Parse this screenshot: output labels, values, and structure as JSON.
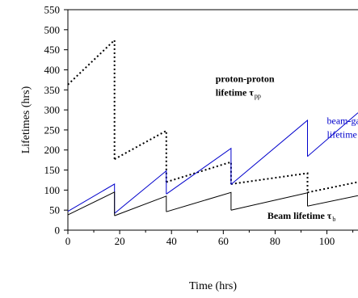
{
  "chart_data": {
    "type": "line",
    "xlabel": "Time (hrs)",
    "ylabel": "Lifetimes (hrs)",
    "xlim": [
      0,
      112
    ],
    "ylim": [
      0,
      550
    ],
    "xticks": [
      0,
      20,
      40,
      60,
      80,
      100
    ],
    "yticks": [
      0,
      50,
      100,
      150,
      200,
      250,
      300,
      350,
      400,
      450,
      500,
      550
    ],
    "grid": false,
    "legend": "none",
    "series": [
      {
        "style": "dotted",
        "color": "#000000",
        "segments": [
          [
            [
              0,
              363
            ],
            [
              18,
              474
            ],
            [
              18,
              177
            ]
          ],
          [
            [
              18,
              177
            ],
            [
              38,
              248
            ],
            [
              38,
              120
            ]
          ],
          [
            [
              38,
              120
            ],
            [
              63,
              170
            ],
            [
              63,
              115
            ]
          ],
          [
            [
              63,
              115
            ],
            [
              92.5,
              142
            ],
            [
              92.5,
              94
            ]
          ],
          [
            [
              92.5,
              94
            ],
            [
              112,
              120
            ]
          ]
        ]
      },
      {
        "style": "solid",
        "color": "#0000cc",
        "segments": [
          [
            [
              0,
              47
            ],
            [
              18,
              115
            ],
            [
              18,
              42
            ]
          ],
          [
            [
              18,
              42
            ],
            [
              38,
              148
            ],
            [
              38,
              90
            ]
          ],
          [
            [
              38,
              90
            ],
            [
              63,
              204
            ],
            [
              63,
              114
            ]
          ],
          [
            [
              63,
              114
            ],
            [
              92.5,
              274
            ],
            [
              92.5,
              184
            ]
          ],
          [
            [
              92.5,
              184
            ],
            [
              112,
              293
            ]
          ]
        ]
      },
      {
        "style": "solid",
        "color": "#000000",
        "segments": [
          [
            [
              0,
              38
            ],
            [
              18,
              95
            ],
            [
              18,
              36
            ]
          ],
          [
            [
              18,
              36
            ],
            [
              38,
              85
            ],
            [
              38,
              46
            ]
          ],
          [
            [
              38,
              46
            ],
            [
              63,
              94
            ],
            [
              63,
              50
            ]
          ],
          [
            [
              63,
              50
            ],
            [
              92.5,
              93
            ],
            [
              92.5,
              60
            ]
          ],
          [
            [
              92.5,
              60
            ],
            [
              112,
              86
            ]
          ]
        ]
      }
    ],
    "annotations": [
      {
        "lines": [
          "proton-proton",
          "lifetime τ"
        ],
        "sub": "pp",
        "color": "#000000",
        "bold": true,
        "x": 57,
        "y": 370
      },
      {
        "lines": [
          "beam-gas scattering",
          "lifetime τ"
        ],
        "sub": "g",
        "color": "#0000cc",
        "bold": false,
        "x": 100,
        "y": 265
      },
      {
        "lines": [
          "Beam lifetime τ"
        ],
        "sub": "b",
        "color": "#000000",
        "bold": true,
        "x": 77,
        "y": 28
      }
    ]
  }
}
